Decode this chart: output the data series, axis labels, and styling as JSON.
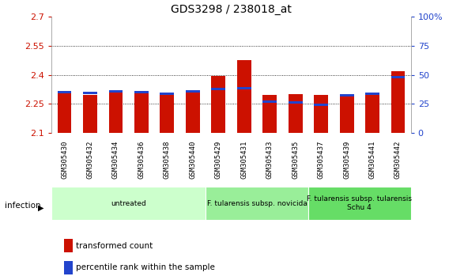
{
  "title": "GDS3298 / 238018_at",
  "samples": [
    "GSM305430",
    "GSM305432",
    "GSM305434",
    "GSM305436",
    "GSM305438",
    "GSM305440",
    "GSM305429",
    "GSM305431",
    "GSM305433",
    "GSM305435",
    "GSM305437",
    "GSM305439",
    "GSM305441",
    "GSM305442"
  ],
  "red_values": [
    2.305,
    2.298,
    2.308,
    2.307,
    2.295,
    2.308,
    2.395,
    2.478,
    2.295,
    2.3,
    2.296,
    2.296,
    2.297,
    2.418
  ],
  "blue_tops": [
    2.318,
    2.313,
    2.32,
    2.318,
    2.31,
    2.32,
    2.333,
    2.337,
    2.268,
    2.265,
    2.253,
    2.302,
    2.31,
    2.393
  ],
  "y_min": 2.1,
  "y_max": 2.7,
  "y_ticks_left": [
    2.1,
    2.25,
    2.4,
    2.55,
    2.7
  ],
  "y_ticks_right_pct": [
    0,
    25,
    50,
    75,
    100
  ],
  "right_y_labels": [
    "0",
    "25",
    "50",
    "75",
    "100%"
  ],
  "bar_color_red": "#cc1100",
  "bar_color_blue": "#2244cc",
  "bar_width": 0.55,
  "blue_bar_height": 0.012,
  "groups": [
    {
      "label": "untreated",
      "start": 0,
      "end": 6,
      "color": "#ccffcc"
    },
    {
      "label": "F. tularensis subsp. novicida",
      "start": 6,
      "end": 10,
      "color": "#99ee99"
    },
    {
      "label": "F. tularensis subsp. tularensis\nSchu 4",
      "start": 10,
      "end": 14,
      "color": "#66dd66"
    }
  ],
  "infection_label": "infection",
  "legend_red": "transformed count",
  "legend_blue": "percentile rank within the sample",
  "tick_label_fontsize": 6.5,
  "axis_color_red": "#cc1100",
  "axis_color_blue": "#2244cc",
  "xlabel_bg_color": "#cccccc",
  "title_fontsize": 10,
  "legend_fontsize": 7.5
}
